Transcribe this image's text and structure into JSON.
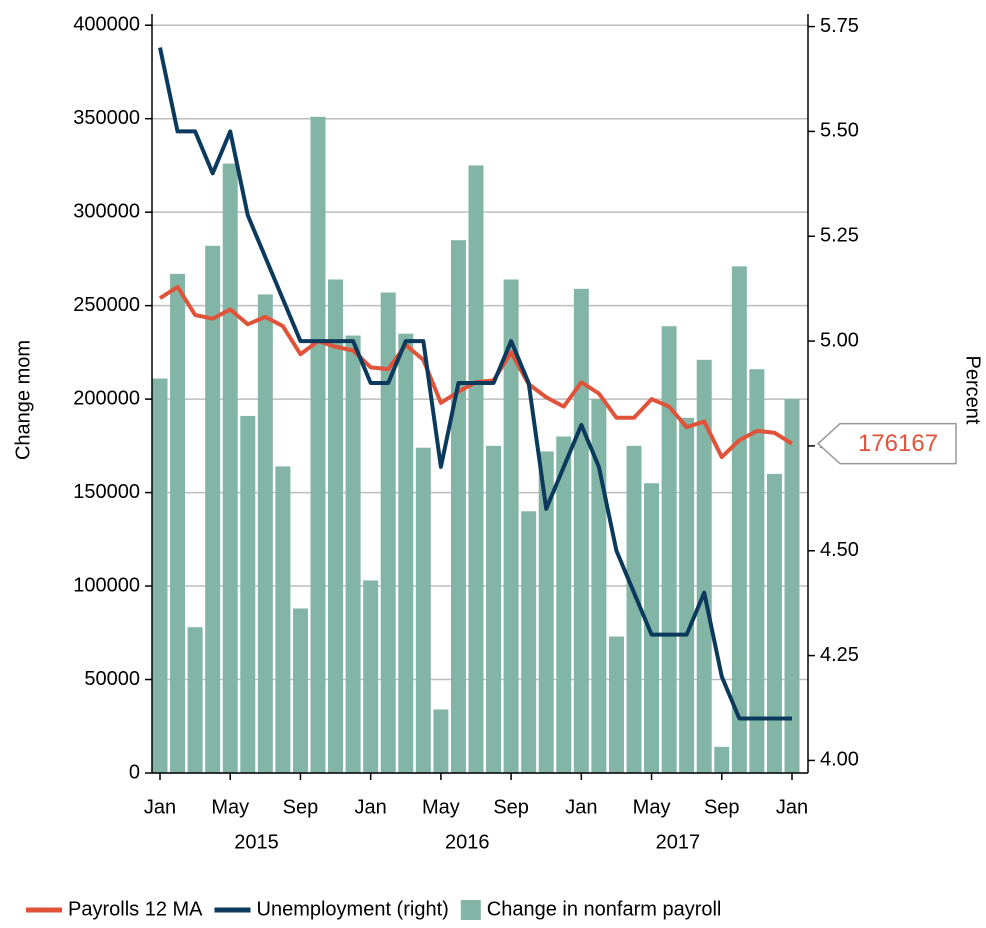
{
  "chart_data": {
    "type": "combo",
    "categories": [
      "Jan",
      null,
      null,
      null,
      "May",
      null,
      null,
      null,
      "Sep",
      null,
      null,
      null,
      "Jan",
      null,
      null,
      null,
      "May",
      null,
      null,
      null,
      "Sep",
      null,
      null,
      null,
      "Jan",
      null,
      null,
      null,
      "May",
      null,
      null,
      null,
      "Sep",
      null,
      null,
      null,
      "Jan"
    ],
    "year_labels": [
      "2015",
      "2016",
      "2017"
    ],
    "ylabel": "Change mom",
    "y2label": "Percent",
    "ylim": [
      0,
      406000
    ],
    "yticks": [
      0,
      50000,
      100000,
      150000,
      200000,
      250000,
      300000,
      350000,
      400000
    ],
    "y2lim": [
      3.97,
      5.78
    ],
    "y2ticks": [
      {
        "value": 4,
        "label": "4.00"
      },
      {
        "value": 4.25,
        "label": "4.25"
      },
      {
        "value": 4.5,
        "label": "4.50"
      },
      {
        "value": 4.75,
        "label": "4.75"
      },
      {
        "value": 5,
        "label": "5.00"
      },
      {
        "value": 5.25,
        "label": "5.25"
      },
      {
        "value": 5.5,
        "label": "5.50"
      },
      {
        "value": 5.75,
        "label": "5.75"
      }
    ],
    "grid": true,
    "legend": "bottom",
    "series": [
      {
        "name": "Payrolls 12 MA",
        "type": "line",
        "color": "#e0533a",
        "values": [
          254000,
          260000,
          245000,
          243000,
          248000,
          240000,
          244000,
          239000,
          224000,
          231000,
          228000,
          226000,
          217000,
          216000,
          229000,
          221000,
          198000,
          204000,
          209000,
          210000,
          225000,
          208000,
          201000,
          196000,
          209000,
          203000,
          190000,
          190000,
          200000,
          196000,
          185000,
          188000,
          169000,
          178000,
          183000,
          182000,
          176167
        ]
      },
      {
        "name": "Unemployment (right)",
        "type": "line",
        "axis": "y2",
        "color": "#0b3a5c",
        "values": [
          5.7,
          5.5,
          5.5,
          5.4,
          5.5,
          5.3,
          5.2,
          5.1,
          5.0,
          5.0,
          5.0,
          5.0,
          4.9,
          4.9,
          5.0,
          5.0,
          4.7,
          4.9,
          4.9,
          4.9,
          5.0,
          4.9,
          4.6,
          4.7,
          4.8,
          4.7,
          4.5,
          4.4,
          4.3,
          4.3,
          4.3,
          4.4,
          4.2,
          4.1,
          4.1,
          4.1,
          4.1
        ]
      },
      {
        "name": "Change in nonfarm payroll",
        "type": "bar",
        "color": "#82b5a6",
        "values": [
          211000,
          267000,
          78000,
          282000,
          326000,
          191000,
          256000,
          164000,
          88000,
          351000,
          264000,
          234000,
          103000,
          257000,
          235000,
          174000,
          34000,
          285000,
          325000,
          175000,
          264000,
          140000,
          172000,
          180000,
          259000,
          200000,
          73000,
          175000,
          155000,
          239000,
          190000,
          221000,
          14000,
          271000,
          216000,
          160000,
          200000
        ]
      }
    ]
  }
}
